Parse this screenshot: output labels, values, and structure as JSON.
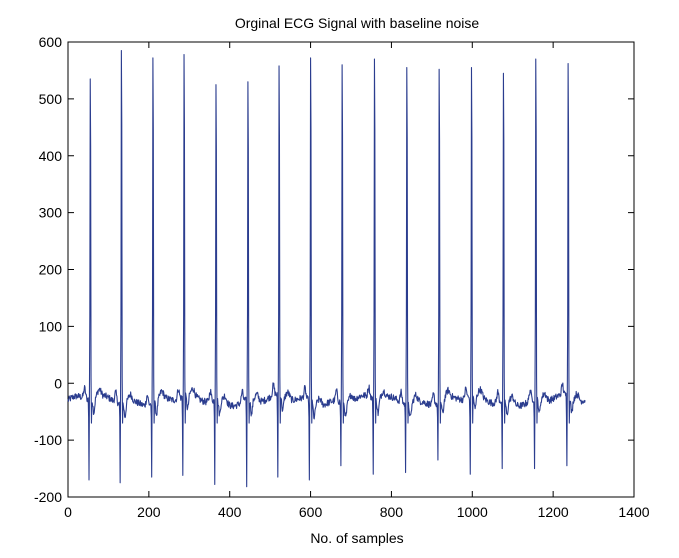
{
  "chart_data": {
    "type": "line",
    "title": "Orginal ECG Signal with baseline noise",
    "xlabel": "No. of samples",
    "ylabel": "",
    "xlim": [
      0,
      1400
    ],
    "ylim": [
      -200,
      600
    ],
    "xticks": [
      "0",
      "200",
      "400",
      "600",
      "800",
      "1000",
      "1200",
      "1400"
    ],
    "yticks": [
      "600",
      "500",
      "400",
      "300",
      "200",
      "100",
      "0",
      "-100",
      "-200"
    ],
    "grid": false,
    "line_color": "#2b3d8f",
    "sample_count": 1280,
    "baseline": -30,
    "beats": [
      {
        "x": 55,
        "peak": 535,
        "trough": -170
      },
      {
        "x": 132,
        "peak": 585,
        "trough": -175
      },
      {
        "x": 210,
        "peak": 572,
        "trough": -165
      },
      {
        "x": 287,
        "peak": 578,
        "trough": -162
      },
      {
        "x": 366,
        "peak": 525,
        "trough": -178
      },
      {
        "x": 445,
        "peak": 530,
        "trough": -182
      },
      {
        "x": 522,
        "peak": 558,
        "trough": -165
      },
      {
        "x": 600,
        "peak": 572,
        "trough": -170
      },
      {
        "x": 678,
        "peak": 560,
        "trough": -145
      },
      {
        "x": 758,
        "peak": 570,
        "trough": -160
      },
      {
        "x": 838,
        "peak": 555,
        "trough": -157
      },
      {
        "x": 918,
        "peak": 552,
        "trough": -135
      },
      {
        "x": 998,
        "peak": 555,
        "trough": -160
      },
      {
        "x": 1077,
        "peak": 545,
        "trough": -150
      },
      {
        "x": 1157,
        "peak": 570,
        "trough": -150
      },
      {
        "x": 1237,
        "peak": 562,
        "trough": -145
      }
    ]
  }
}
